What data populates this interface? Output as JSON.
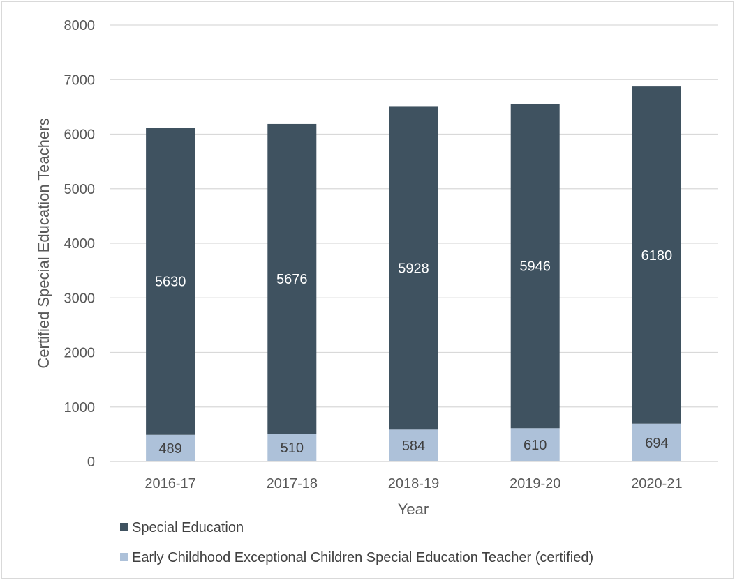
{
  "chart_data": {
    "type": "bar",
    "stacked": true,
    "title": "",
    "xlabel": "Year",
    "ylabel": "Certified Special Education Teachers",
    "ylim": [
      0,
      8000
    ],
    "yticks": [
      0,
      1000,
      2000,
      3000,
      4000,
      5000,
      6000,
      7000,
      8000
    ],
    "grid": true,
    "legend_position": "bottom",
    "categories": [
      "2016-17",
      "2017-18",
      "2018-19",
      "2019-20",
      "2020-21"
    ],
    "series": [
      {
        "name": "Early Childhood Exceptional Children Special Education Teacher (certified)",
        "values": [
          489,
          510,
          584,
          610,
          694
        ],
        "color": "#adc1d9",
        "label_color": "#404040"
      },
      {
        "name": "Special Education",
        "values": [
          5630,
          5676,
          5928,
          5946,
          6180
        ],
        "color": "#3f5260",
        "label_color": "#ffffff"
      }
    ],
    "legend_order": [
      1,
      0
    ]
  }
}
